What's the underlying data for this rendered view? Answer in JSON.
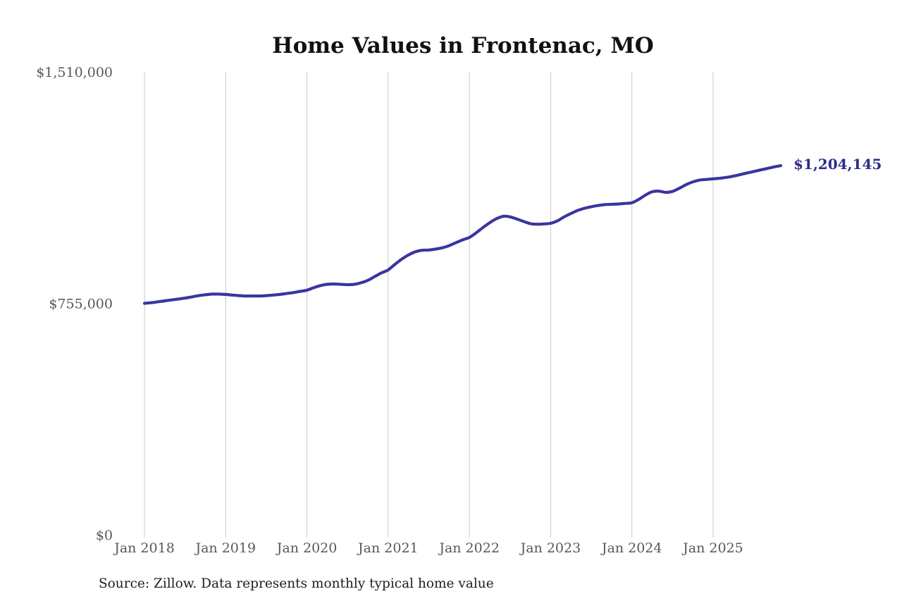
{
  "title": "Home Values in Frontenac, MO",
  "source_note": "Source: Zillow. Data represents monthly typical home value",
  "annotation": {
    "label": "$1,204,145"
  },
  "colors": {
    "line": "#3a35a0",
    "annotation": "#2b2a8c",
    "axis_label": "#585858",
    "gridline": "#c9c9c9",
    "title": "#111111",
    "source": "#1e1e1e",
    "background": "#ffffff"
  },
  "chart_data": {
    "type": "line",
    "title": "Home Values in Frontenac, MO",
    "xlabel": "",
    "ylabel": "",
    "x_start": "2018-01",
    "x_end": "2025-11",
    "x_frequency": "monthly",
    "x_tick_labels": [
      "Jan 2018",
      "Jan 2019",
      "Jan 2020",
      "Jan 2021",
      "Jan 2022",
      "Jan 2023",
      "Jan 2024",
      "Jan 2025"
    ],
    "y_ticks": [
      0,
      755000,
      1510000
    ],
    "y_tick_labels": [
      "$0",
      "$755,000",
      "$1,510,000"
    ],
    "ylim": [
      0,
      1510000
    ],
    "grid": "vertical-only",
    "legend": "none",
    "last_value": 1204145,
    "last_value_label": "$1,204,145",
    "series": [
      {
        "name": "Monthly typical home value",
        "values": [
          755000,
          757000,
          760000,
          763000,
          766000,
          769000,
          772000,
          776000,
          780000,
          783000,
          785000,
          785000,
          784000,
          782000,
          780000,
          779000,
          779000,
          779000,
          780000,
          782000,
          784000,
          787000,
          790000,
          794000,
          798000,
          806000,
          813000,
          817000,
          818000,
          817000,
          816000,
          817000,
          822000,
          830000,
          842000,
          854000,
          864000,
          882000,
          899000,
          913000,
          923000,
          928000,
          929000,
          932000,
          936000,
          943000,
          953000,
          962000,
          970000,
          985000,
          1002000,
          1018000,
          1031000,
          1039000,
          1037000,
          1030000,
          1022000,
          1015000,
          1013000,
          1014000,
          1016000,
          1024000,
          1037000,
          1048000,
          1058000,
          1065000,
          1070000,
          1074000,
          1077000,
          1078000,
          1079000,
          1081000,
          1083000,
          1094000,
          1108000,
          1119000,
          1121000,
          1117000,
          1120000,
          1130000,
          1142000,
          1151000,
          1157000,
          1159000,
          1161000,
          1163000,
          1166000,
          1170000,
          1175000,
          1180000,
          1185000,
          1190000,
          1195000,
          1200000,
          1204145
        ]
      }
    ]
  }
}
